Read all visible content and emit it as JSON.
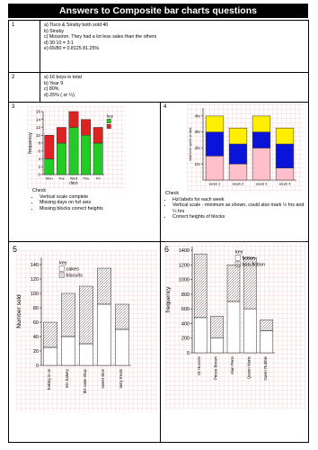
{
  "header": {
    "title": "Answers to Composite bar charts questions"
  },
  "questions": [
    {
      "number": "1",
      "answers": [
        "a)   Tisco & Sinsby both sold 40",
        "b)   Sinsby",
        "c)   Mossiron. They had a lot less sales than the others",
        "d)   30:10 = 3:1",
        "e)   65/80 = 0.8125    81.25%"
      ]
    },
    {
      "number": "2",
      "answers": [
        "a)   16 boys in total",
        "b)   Year 9",
        "c)   80%",
        "d)   25% ( or ¼)"
      ]
    },
    {
      "number": "3",
      "notes": [
        "Check",
        "Vertical scale complete",
        "Missing days on hzl axis",
        "Missing blocks correct heights"
      ]
    },
    {
      "number": "4",
      "notes": [
        "Check",
        "Hzl labels for each week",
        "Vertical scale - minimum as shown, could also mark ½ hrs and ¼ hrs",
        "Correct heights of blocks"
      ]
    },
    {
      "number": "5"
    },
    {
      "number": "6"
    }
  ],
  "chart_data": [
    {
      "type": "bar",
      "stacked": true,
      "x_label": "days",
      "y_label": "frequency",
      "legend_title": "key",
      "categories": [
        "Mon",
        "Tue",
        "Wed",
        "Thu",
        "Fri"
      ],
      "series": [
        {
          "color": "#22cc22",
          "values": [
            4,
            8,
            12,
            10,
            8
          ]
        },
        {
          "color": "#dd2222",
          "values": [
            6,
            4,
            4,
            4,
            4
          ]
        }
      ],
      "ylim": [
        0,
        16
      ],
      "yticks": [
        0,
        2,
        4,
        6,
        8,
        10,
        12,
        14,
        16
      ]
    },
    {
      "type": "bar",
      "stacked": true,
      "y_label": "total time spent on task",
      "categories": [
        "week 1",
        "week 2",
        "week 3",
        "week 4"
      ],
      "series": [
        {
          "color": "#ffc0cb",
          "values": [
            1.5,
            1,
            2,
            0.75
          ]
        },
        {
          "color": "#0a14d8",
          "values": [
            1.5,
            1.25,
            1,
            1.5
          ]
        },
        {
          "color": "#ffee00",
          "values": [
            1,
            1,
            1,
            1
          ]
        }
      ],
      "ylim": [
        0,
        4.5
      ],
      "yticks": [
        {
          "value": 1,
          "label": "1hr"
        },
        {
          "value": 2,
          "label": "2hr"
        },
        {
          "value": 3,
          "label": "3hr"
        },
        {
          "value": 4,
          "label": "4hr"
        }
      ]
    },
    {
      "type": "bar",
      "stacked": true,
      "y_label": "Number sold",
      "legend_title": "key",
      "categories": [
        "baking is us",
        "mix bakery",
        "the cake shop",
        "sweet slice",
        "tasty treats"
      ],
      "series": [
        {
          "name": "cakes",
          "color": "#ffffff",
          "values": [
            25,
            40,
            30,
            85,
            50
          ]
        },
        {
          "name": "biscuits",
          "color": "#ffffff",
          "pattern": "hatch",
          "values": [
            35,
            60,
            80,
            50,
            35
          ]
        }
      ],
      "ylim": [
        0,
        150
      ],
      "yticks": [
        0,
        20,
        40,
        60,
        80,
        100,
        120,
        140
      ]
    },
    {
      "type": "bar",
      "stacked": true,
      "y_label": "frequency",
      "legend_title": "key",
      "categories": [
        "Dr Hooves",
        "Prince Brown",
        "Alan Penn",
        "Queen Marie",
        "Gwen Rubble"
      ],
      "series": [
        {
          "name": "fiction",
          "color": "#ffffff",
          "values": [
            480,
            200,
            700,
            600,
            300
          ]
        },
        {
          "name": "non-fiction",
          "color": "#ffffff",
          "pattern": "hatch",
          "values": [
            870,
            300,
            500,
            700,
            150
          ]
        }
      ],
      "ylim": [
        0,
        1450
      ],
      "yticks": [
        0,
        200,
        400,
        600,
        800,
        1000,
        1200,
        1400
      ]
    }
  ]
}
